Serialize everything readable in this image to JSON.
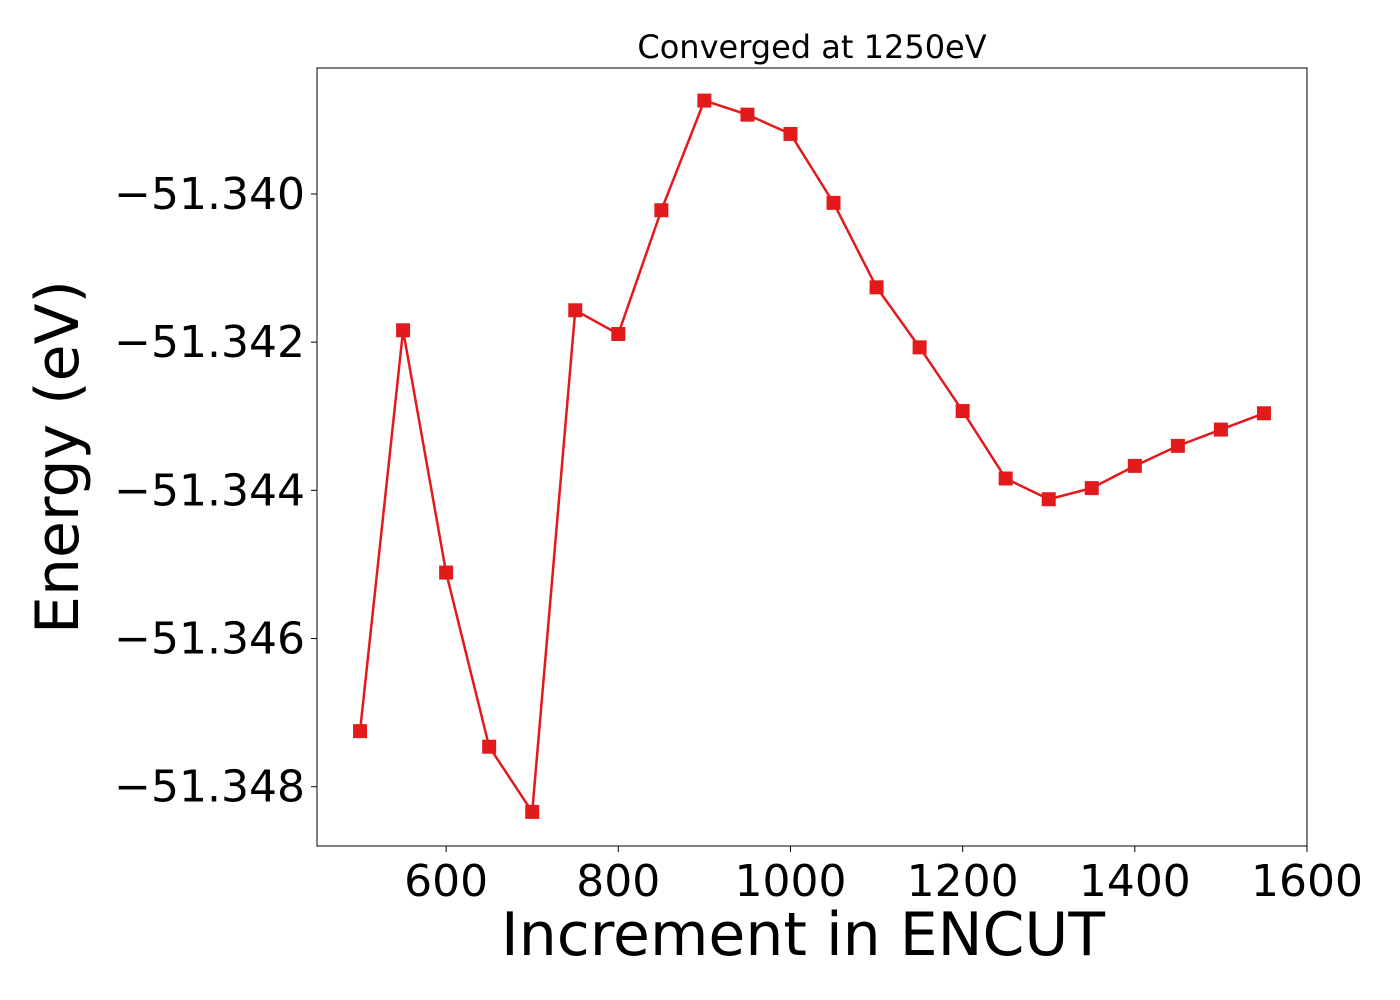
{
  "chart_data": {
    "type": "line",
    "title": "Converged at 1250eV",
    "xlabel": "Increment in ENCUT",
    "ylabel": "Energy (eV)",
    "xlim": [
      450,
      1600
    ],
    "ylim": [
      -51.3488,
      -51.3383
    ],
    "xticks": [
      600,
      800,
      1000,
      1200,
      1400,
      1600
    ],
    "xtick_labels": [
      "600",
      "800",
      "1000",
      "1200",
      "1400",
      "1600"
    ],
    "yticks": [
      -51.34,
      -51.342,
      -51.344,
      -51.346,
      -51.348
    ],
    "ytick_labels": [
      "−51.340",
      "−51.342",
      "−51.344",
      "−51.346",
      "−51.348"
    ],
    "grid": false,
    "marker": "square",
    "color": "#e31a1c",
    "series": [
      {
        "x": [
          500,
          550,
          600,
          650,
          700,
          750,
          800,
          850,
          900,
          950,
          1000,
          1050,
          1100,
          1150,
          1200,
          1250,
          1300,
          1350,
          1400,
          1450,
          1500,
          1550
        ],
        "y": [
          -51.34725,
          -51.34184,
          -51.34511,
          -51.34746,
          -51.34834,
          -51.34157,
          -51.34189,
          -51.34022,
          -51.33874,
          -51.33893,
          -51.33919,
          -51.34012,
          -51.34126,
          -51.34207,
          -51.34293,
          -51.34384,
          -51.34412,
          -51.34397,
          -51.34367,
          -51.3434,
          -51.34318,
          -51.34296
        ]
      }
    ]
  }
}
